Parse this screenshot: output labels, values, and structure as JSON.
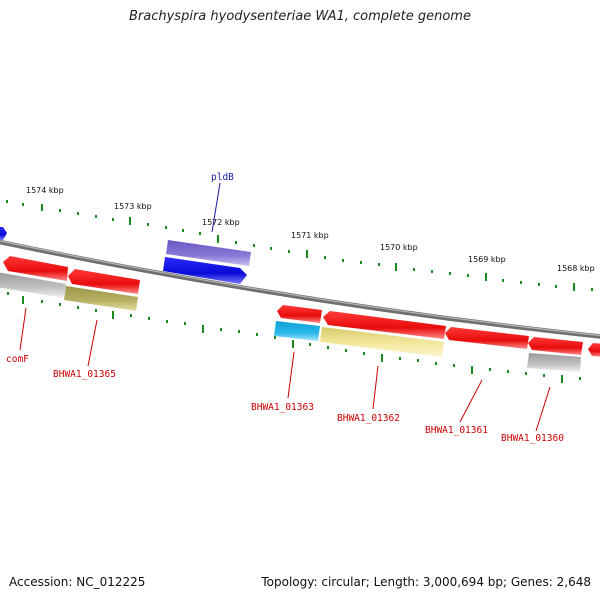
{
  "header": {
    "title": "Brachyspira hyodysenteriae WA1, complete genome"
  },
  "footer": {
    "accession": "Accession: NC_012225",
    "summary": "Topology: circular; Length: 3,000,694 bp; Genes: 2,648"
  },
  "ruler_labels": [
    "1574 kbp",
    "1573 kbp",
    "1572 kbp",
    "1571 kbp",
    "1570 kbp",
    "1569 kbp",
    "1568 kbp"
  ],
  "gene_labels": [
    "pldB",
    "comF",
    "BHWA1_01365",
    "BHWA1_01363",
    "BHWA1_01362",
    "BHWA1_01361",
    "BHWA1_01360"
  ],
  "colors": {
    "backbone": "#8a8a8a",
    "cds_red": "#ee1111",
    "cds_blue": "#1111dd",
    "cds_violet": "#7b68cc",
    "cds_grey": "#b5b5b5",
    "cds_olive": "#b3ad5e",
    "cds_cyan": "#22aee0",
    "cds_yellow": "#f2e79a",
    "tick": "#1c8a1c",
    "label_red": "#cc0000",
    "label_blue": "#1a1aa6"
  }
}
